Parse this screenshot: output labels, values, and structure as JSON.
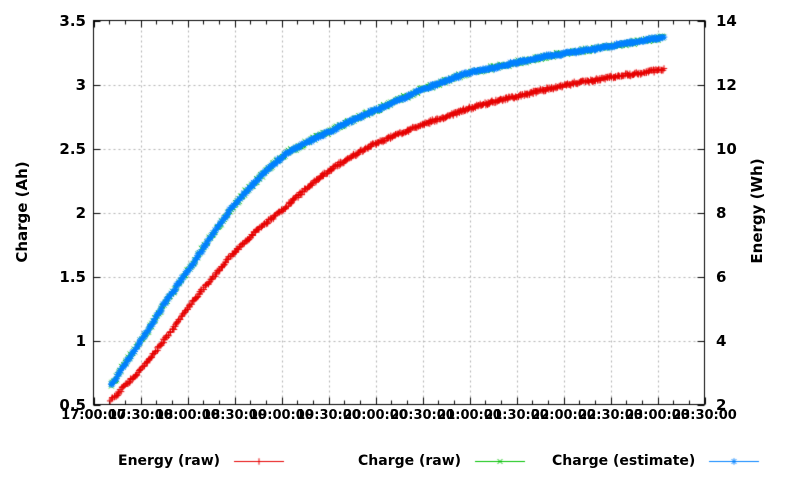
{
  "chart_data": {
    "type": "scatter",
    "title": "",
    "grid": true,
    "legend_position": "below",
    "x_axis": {
      "label": "",
      "unit": "time",
      "range_minutes": [
        0,
        390
      ],
      "tick_step_minutes": 30,
      "minor_tick_minutes": 10,
      "tick_labels": [
        "17:00:00",
        "17:30:00",
        "18:00:00",
        "18:30:00",
        "19:00:00",
        "19:30:00",
        "20:00:00",
        "20:30:00",
        "21:00:00",
        "21:30:00",
        "22:00:00",
        "22:30:00",
        "23:00:00",
        "23:30:00"
      ]
    },
    "y_left": {
      "label": "Charge (Ah)",
      "range": [
        0.5,
        3.5
      ],
      "ticks": [
        {
          "label": "0.5",
          "v": 0.5
        },
        {
          "label": "1",
          "v": 1
        },
        {
          "label": "1.5",
          "v": 1.5
        },
        {
          "label": "2",
          "v": 2
        },
        {
          "label": "2.5",
          "v": 2.5
        },
        {
          "label": "3",
          "v": 3
        },
        {
          "label": "3.5",
          "v": 3.5
        }
      ]
    },
    "y_right": {
      "label": "Energy (Wh)",
      "range": [
        2,
        14
      ],
      "ticks": [
        {
          "label": "2",
          "v": 2
        },
        {
          "label": "4",
          "v": 4
        },
        {
          "label": "6",
          "v": 6
        },
        {
          "label": "8",
          "v": 8
        },
        {
          "label": "10",
          "v": 10
        },
        {
          "label": "12",
          "v": 12
        },
        {
          "label": "14",
          "v": 14
        }
      ]
    },
    "series": [
      {
        "name": "Energy (raw)",
        "axis": "right",
        "color": "#e60000",
        "marker": "plus",
        "points_unit": [
          "minutes_after_17:00",
          "Wh"
        ],
        "points": [
          [
            11,
            2.15
          ],
          [
            20,
            2.6
          ],
          [
            30,
            3.1
          ],
          [
            45,
            4.0
          ],
          [
            60,
            5.0
          ],
          [
            75,
            5.9
          ],
          [
            90,
            6.75
          ],
          [
            105,
            7.45
          ],
          [
            120,
            8.05
          ],
          [
            135,
            8.7
          ],
          [
            150,
            9.3
          ],
          [
            165,
            9.75
          ],
          [
            180,
            10.15
          ],
          [
            195,
            10.45
          ],
          [
            210,
            10.75
          ],
          [
            225,
            11.0
          ],
          [
            240,
            11.25
          ],
          [
            255,
            11.45
          ],
          [
            270,
            11.63
          ],
          [
            285,
            11.8
          ],
          [
            300,
            11.97
          ],
          [
            315,
            12.1
          ],
          [
            330,
            12.22
          ],
          [
            345,
            12.33
          ],
          [
            360,
            12.44
          ],
          [
            364,
            12.47
          ]
        ]
      },
      {
        "name": "Charge (raw)",
        "axis": "left",
        "color": "#00c000",
        "marker": "cross",
        "points_unit": [
          "minutes_after_17:00",
          "Ah"
        ],
        "points": [
          [
            11,
            0.66
          ],
          [
            20,
            0.82
          ],
          [
            30,
            1.0
          ],
          [
            45,
            1.28
          ],
          [
            60,
            1.54
          ],
          [
            75,
            1.81
          ],
          [
            90,
            2.06
          ],
          [
            105,
            2.26
          ],
          [
            120,
            2.43
          ],
          [
            135,
            2.54
          ],
          [
            150,
            2.63
          ],
          [
            165,
            2.72
          ],
          [
            180,
            2.8
          ],
          [
            195,
            2.88
          ],
          [
            210,
            2.96
          ],
          [
            225,
            3.03
          ],
          [
            240,
            3.09
          ],
          [
            255,
            3.13
          ],
          [
            270,
            3.17
          ],
          [
            285,
            3.21
          ],
          [
            300,
            3.24
          ],
          [
            315,
            3.27
          ],
          [
            330,
            3.3
          ],
          [
            345,
            3.33
          ],
          [
            360,
            3.36
          ],
          [
            364,
            3.37
          ]
        ]
      },
      {
        "name": "Charge (estimate)",
        "axis": "left",
        "color": "#0080ff",
        "marker": "star",
        "points_unit": [
          "minutes_after_17:00",
          "Ah"
        ],
        "points": [
          [
            11,
            0.66
          ],
          [
            20,
            0.82
          ],
          [
            30,
            1.0
          ],
          [
            45,
            1.28
          ],
          [
            60,
            1.54
          ],
          [
            75,
            1.81
          ],
          [
            90,
            2.06
          ],
          [
            105,
            2.26
          ],
          [
            120,
            2.43
          ],
          [
            135,
            2.54
          ],
          [
            150,
            2.63
          ],
          [
            165,
            2.72
          ],
          [
            180,
            2.8
          ],
          [
            195,
            2.88
          ],
          [
            210,
            2.96
          ],
          [
            225,
            3.03
          ],
          [
            240,
            3.09
          ],
          [
            255,
            3.13
          ],
          [
            270,
            3.17
          ],
          [
            285,
            3.21
          ],
          [
            300,
            3.24
          ],
          [
            315,
            3.27
          ],
          [
            330,
            3.3
          ],
          [
            345,
            3.33
          ],
          [
            360,
            3.36
          ],
          [
            364,
            3.37
          ]
        ]
      }
    ]
  },
  "legend": {
    "items": [
      {
        "label": "Energy (raw)"
      },
      {
        "label": "Charge (raw)"
      },
      {
        "label": "Charge (estimate)"
      }
    ]
  }
}
